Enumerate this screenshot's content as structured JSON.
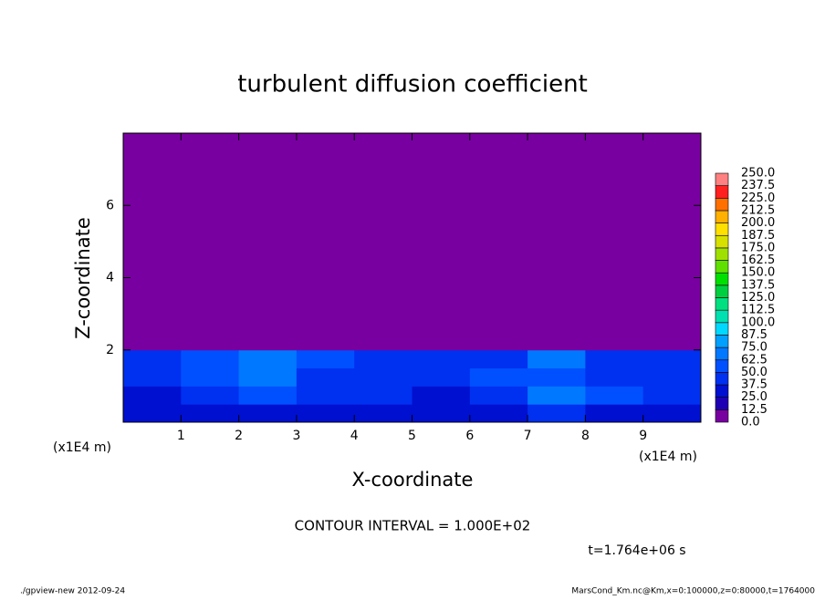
{
  "chart_data": {
    "type": "heatmap",
    "title": "turbulent diffusion coefficient",
    "x_label": "X-coordinate",
    "y_label": "Z-coordinate",
    "x_unit": "(x1E4 m)",
    "y_unit": "(x1E4 m)",
    "contour_note": "CONTOUR INTERVAL = 1.000E+02",
    "time_note": "t=1.764e+06 s",
    "footer_left": "./gpview-new  2012-09-24",
    "footer_right": "MarsCond_Km.nc@Km,x=0:100000,z=0:80000,t=1764000",
    "xlim": [
      0,
      10
    ],
    "ylim": [
      0,
      8
    ],
    "xticks": [
      1,
      2,
      3,
      4,
      5,
      6,
      7,
      8,
      9
    ],
    "yticks": [
      2,
      4,
      6
    ],
    "x_edges": [
      0,
      1,
      2,
      3,
      4,
      5,
      6,
      7,
      8,
      9,
      10
    ],
    "z_edges": [
      0,
      0.5,
      1,
      1.5,
      2,
      8
    ],
    "values": [
      [
        25,
        25,
        30,
        30,
        25,
        30,
        25,
        37.5,
        30,
        25
      ],
      [
        30,
        37.5,
        50,
        37.5,
        37.5,
        30,
        37.5,
        62.5,
        50,
        37.5
      ],
      [
        37.5,
        50,
        62.5,
        37.5,
        37.5,
        37.5,
        50,
        50,
        37.5,
        37.5
      ],
      [
        37.5,
        50,
        62.5,
        50,
        37.5,
        37.5,
        37.5,
        62.5,
        37.5,
        37.5
      ],
      [
        0,
        0,
        0,
        0,
        0,
        0,
        0,
        0,
        0,
        0
      ]
    ],
    "colorbar": {
      "levels": [
        {
          "value": 0,
          "label": "0.0"
        },
        12.5,
        {
          "value": 25,
          "label": "25.0"
        },
        37.5,
        {
          "value": 50,
          "label": "50.0"
        },
        62.5,
        {
          "value": 75,
          "label": "75.0"
        },
        87.5,
        {
          "value": 100,
          "label": "100.0"
        },
        112.5,
        {
          "value": 125,
          "label": "125.0"
        },
        137.5,
        {
          "value": 150,
          "label": "150.0"
        },
        162.5,
        {
          "value": 175,
          "label": "175.0"
        },
        187.5,
        {
          "value": 200,
          "label": "200.0"
        },
        212.5,
        {
          "value": 225,
          "label": "225.0"
        },
        237.5,
        {
          "value": 250,
          "label": "250.0"
        }
      ],
      "colors": [
        "#7800a0",
        "#1e00b4",
        "#0010d0",
        "#0030f0",
        "#0050ff",
        "#0078ff",
        "#00a0ff",
        "#00d8ff",
        "#00e0b0",
        "#00e080",
        "#00d040",
        "#00e000",
        "#60e000",
        "#a0e000",
        "#d8e000",
        "#ffe000",
        "#ffb000",
        "#ff7000",
        "#ff2020",
        "#ff8080"
      ]
    }
  }
}
